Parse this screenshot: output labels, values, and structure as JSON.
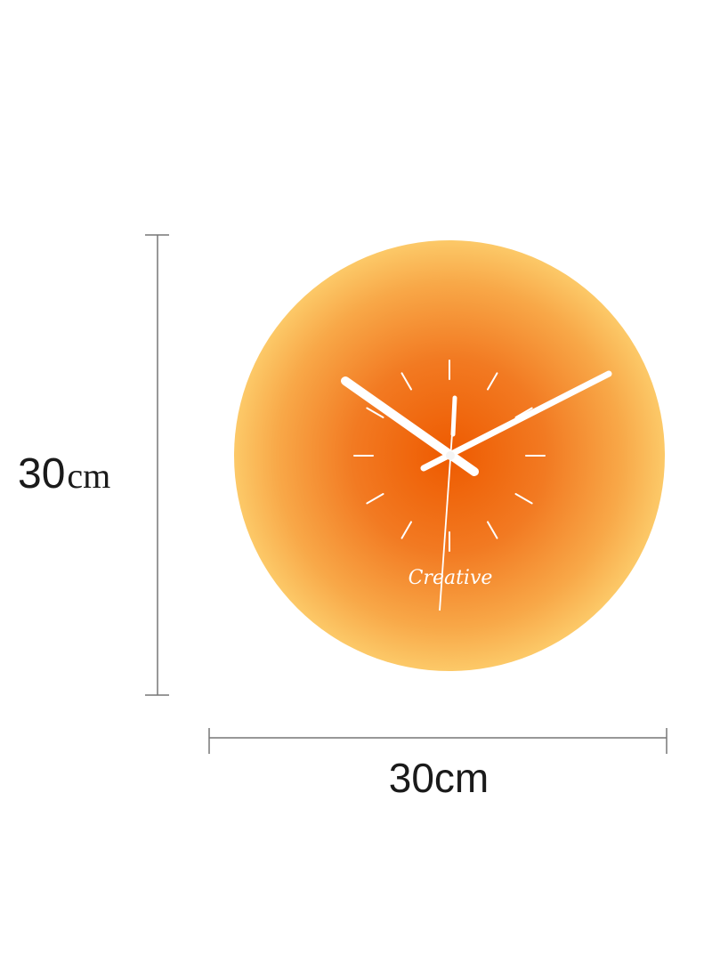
{
  "product": {
    "brand_text": "Creative",
    "height_label": {
      "number": "30",
      "unit": "cm"
    },
    "width_label": "30cm"
  },
  "clock": {
    "hour_markers": 12,
    "colors": {
      "center": "#ee5a00",
      "edge": "#fbc865",
      "hands": "#ffffff",
      "dimension_line": "#777777"
    }
  }
}
